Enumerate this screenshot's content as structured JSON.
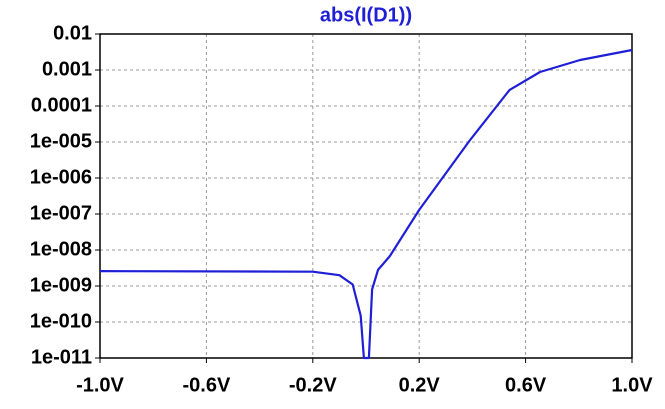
{
  "chart_data": {
    "type": "line",
    "title": "abs(I(D1))",
    "x": [
      -1.0,
      -0.2,
      -0.1,
      -0.05,
      -0.02,
      -0.008,
      0.011,
      0.023,
      0.045,
      0.09,
      0.2,
      0.39,
      0.54,
      0.654,
      0.805,
      1.0
    ],
    "values": [
      2.6e-09,
      2.5e-09,
      2e-09,
      1.1e-09,
      1.5e-10,
      1e-11,
      1e-11,
      8e-10,
      2.8e-09,
      6.8e-09,
      1.3e-07,
      1.1e-05,
      0.00028,
      0.00088,
      0.0019,
      0.0036
    ],
    "color": "#1f1fd6",
    "xlim": [
      -1.0,
      1.0
    ],
    "xticks": [
      {
        "value": -1.0,
        "label": "-1.0V"
      },
      {
        "value": -0.6,
        "label": "-0.6V"
      },
      {
        "value": -0.2,
        "label": "-0.2V"
      },
      {
        "value": 0.2,
        "label": "0.2V"
      },
      {
        "value": 0.6,
        "label": "0.6V"
      },
      {
        "value": 1.0,
        "label": "1.0V"
      }
    ],
    "ylim": [
      1e-11,
      0.01
    ],
    "yscale": "log",
    "yticks": [
      0.01,
      0.001,
      0.0001,
      {
        "value": 1e-05,
        "label": "1e-005"
      },
      {
        "value": 1e-06,
        "label": "1e-006"
      },
      {
        "value": 1e-07,
        "label": "1e-007"
      },
      {
        "value": 1e-08,
        "label": "1e-008"
      },
      {
        "value": 1e-09,
        "label": "1e-009"
      },
      {
        "value": 1e-10,
        "label": "1e-010"
      },
      {
        "value": 1e-11,
        "label": "1e-011"
      }
    ],
    "grid": true
  }
}
